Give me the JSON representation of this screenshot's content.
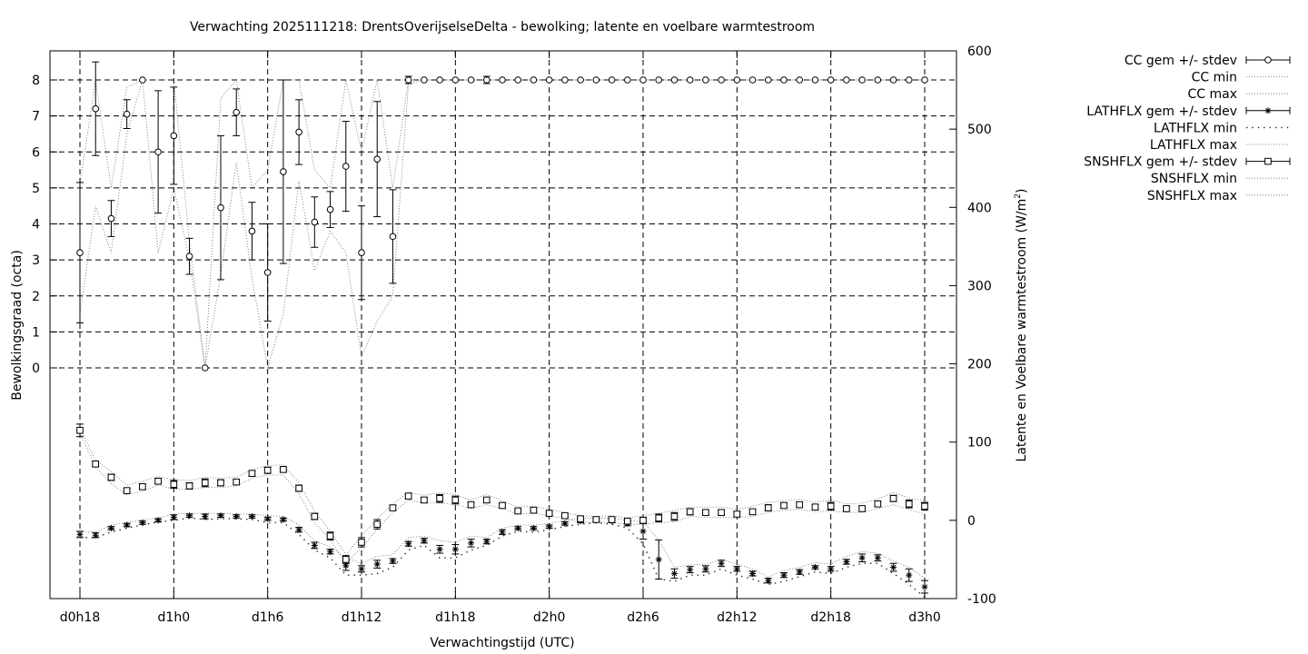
{
  "chart_data": {
    "type": "line",
    "title": "Verwachting 2025111218: DrentsOverijselseDelta - bewolking; latente en voelbare warmtestroom",
    "xlabel": "Verwachtingstijd (UTC)",
    "ylabel_left": "Bewolkingsgraad (octa)",
    "ylabel_right": "Latente en Voelbare warmtestroom (W/m",
    "ylabel_right_sup": "2",
    "ylabel_right_end": ")",
    "x_unit": "forecast hour (+h from d0h18)",
    "xlim": [
      18,
      72
    ],
    "ylim_left": [
      -6.4,
      8.8
    ],
    "ylim_right": [
      -100,
      600
    ],
    "grid": true,
    "legend_position": "top-right outside",
    "x_ticks": [
      {
        "x": 18,
        "label": "d0h18"
      },
      {
        "x": 24,
        "label": "d1h0"
      },
      {
        "x": 30,
        "label": "d1h6"
      },
      {
        "x": 36,
        "label": "d1h12"
      },
      {
        "x": 42,
        "label": "d1h18"
      },
      {
        "x": 48,
        "label": "d2h0"
      },
      {
        "x": 54,
        "label": "d2h6"
      },
      {
        "x": 60,
        "label": "d2h12"
      },
      {
        "x": 66,
        "label": "d2h18"
      },
      {
        "x": 72,
        "label": "d3h0"
      }
    ],
    "y_left_ticks": [
      0,
      1,
      2,
      3,
      4,
      5,
      6,
      7,
      8
    ],
    "y_right_ticks": [
      -100,
      0,
      100,
      200,
      300,
      400,
      500,
      600
    ],
    "legend": [
      {
        "key": "cc_mean",
        "label": "CC gem +/- stdev"
      },
      {
        "key": "cc_min",
        "label": "CC min"
      },
      {
        "key": "cc_max",
        "label": "CC max"
      },
      {
        "key": "lath_mean",
        "label": "LATHFLX gem +/- stdev"
      },
      {
        "key": "lath_min",
        "label": "LATHFLX min"
      },
      {
        "key": "lath_max",
        "label": "LATHFLX max"
      },
      {
        "key": "snsh_mean",
        "label": "SNSHFLX gem +/- stdev"
      },
      {
        "key": "snsh_min",
        "label": "SNSHFLX min"
      },
      {
        "key": "snsh_max",
        "label": "SNSHFLX max"
      }
    ],
    "series": [
      {
        "key": "cc",
        "axis": "left",
        "marker": "circle",
        "x": [
          18,
          19,
          20,
          21,
          22,
          23,
          24,
          25,
          26,
          27,
          28,
          29,
          30,
          31,
          32,
          33,
          34,
          35,
          36,
          37,
          38,
          39,
          40,
          41,
          42,
          43,
          44,
          45,
          46,
          47,
          48,
          49,
          50,
          51,
          52,
          53,
          54,
          55,
          56,
          57,
          58,
          59,
          60,
          61,
          62,
          63,
          64,
          65,
          66,
          67,
          68,
          69,
          70,
          71,
          72
        ],
        "mean": [
          3.2,
          7.2,
          4.15,
          7.05,
          8.0,
          6.0,
          6.45,
          3.1,
          0.0,
          4.45,
          7.1,
          3.8,
          2.65,
          5.45,
          6.55,
          4.05,
          4.4,
          5.6,
          3.2,
          5.8,
          3.65,
          8.0,
          8.0,
          8.0,
          8.0,
          8.0,
          8.0,
          8.0,
          8.0,
          8.0,
          8.0,
          8.0,
          8.0,
          8.0,
          8.0,
          8.0,
          8.0,
          8.0,
          8.0,
          8.0,
          8.0,
          8.0,
          8.0,
          8.0,
          8.0,
          8.0,
          8.0,
          8.0,
          8.0,
          8.0,
          8.0,
          8.0,
          8.0,
          8.0,
          8.0
        ],
        "stdev": [
          1.95,
          1.3,
          0.5,
          0.4,
          0.0,
          1.7,
          1.35,
          0.5,
          0.0,
          2.0,
          0.65,
          0.8,
          1.35,
          2.55,
          0.9,
          0.7,
          0.5,
          1.25,
          1.3,
          1.6,
          1.3,
          0.1,
          0.0,
          0.0,
          0.0,
          0.0,
          0.1,
          0.0,
          0.0,
          0.0,
          0.0,
          0.0,
          0.0,
          0.0,
          0.0,
          0.0,
          0.0,
          0.0,
          0.0,
          0.0,
          0.0,
          0.0,
          0.0,
          0.0,
          0.0,
          0.0,
          0.0,
          0.0,
          0.0,
          0.0,
          0.0,
          0.0,
          0.0,
          0.0,
          0.0
        ],
        "min": [
          1.5,
          4.5,
          3.2,
          6.5,
          8.0,
          3.2,
          5.0,
          3.0,
          0.0,
          2.6,
          5.7,
          2.5,
          0.0,
          1.5,
          5.2,
          2.7,
          3.8,
          3.2,
          0.3,
          1.3,
          2.0,
          7.9,
          8.0,
          8.0,
          8.0,
          8.0,
          8.0,
          8.0,
          8.0,
          8.0,
          8.0,
          8.0,
          8.0,
          8.0,
          8.0,
          8.0,
          8.0,
          8.0,
          8.0,
          8.0,
          8.0,
          8.0,
          8.0,
          8.0,
          8.0,
          8.0,
          8.0,
          8.0,
          8.0,
          8.0,
          8.0,
          8.0,
          8.0,
          8.0,
          8.0
        ],
        "max": [
          5.1,
          8.0,
          5.0,
          7.8,
          8.0,
          8.0,
          8.0,
          3.5,
          0.0,
          7.5,
          8.0,
          5.0,
          5.5,
          8.0,
          8.0,
          5.5,
          5.0,
          8.0,
          6.0,
          8.0,
          5.0,
          8.0,
          8.0,
          8.0,
          8.0,
          8.0,
          8.0,
          8.0,
          8.0,
          8.0,
          8.0,
          8.0,
          8.0,
          8.0,
          8.0,
          8.0,
          8.0,
          8.0,
          8.0,
          8.0,
          8.0,
          8.0,
          8.0,
          8.0,
          8.0,
          8.0,
          8.0,
          8.0,
          8.0,
          8.0,
          8.0,
          8.0,
          8.0,
          8.0,
          8.0
        ]
      },
      {
        "key": "lath",
        "axis": "right",
        "marker": "star",
        "x": [
          18,
          19,
          20,
          21,
          22,
          23,
          24,
          25,
          26,
          27,
          28,
          29,
          30,
          31,
          32,
          33,
          34,
          35,
          36,
          37,
          38,
          39,
          40,
          41,
          42,
          43,
          44,
          45,
          46,
          47,
          48,
          49,
          50,
          51,
          52,
          53,
          54,
          55,
          56,
          57,
          58,
          59,
          60,
          61,
          62,
          63,
          64,
          65,
          66,
          67,
          68,
          69,
          70,
          71,
          72
        ],
        "mean": [
          -18,
          -19,
          -10,
          -6,
          -3,
          0,
          4,
          6,
          5,
          6,
          5,
          5,
          2,
          1,
          -12,
          -32,
          -40,
          -58,
          -62,
          -56,
          -52,
          -30,
          -26,
          -37,
          -37,
          -29,
          -27,
          -15,
          -10,
          -10,
          -8,
          -4,
          -1,
          0,
          -1,
          -4,
          -14,
          -50,
          -68,
          -63,
          -62,
          -55,
          -62,
          -68,
          -77,
          -70,
          -66,
          -60,
          -62,
          -53,
          -48,
          -48,
          -60,
          -70,
          -85
        ],
        "stdev": [
          4,
          3,
          2,
          2,
          2,
          2,
          3,
          2,
          3,
          2,
          2,
          2,
          2,
          2,
          3,
          4,
          3,
          6,
          4,
          5,
          3,
          3,
          3,
          5,
          6,
          5,
          3,
          3,
          2,
          2,
          2,
          2,
          2,
          2,
          2,
          3,
          10,
          25,
          6,
          4,
          4,
          4,
          3,
          3,
          3,
          3,
          3,
          2,
          3,
          3,
          5,
          4,
          5,
          8,
          8
        ],
        "min": [
          -22,
          -22,
          -15,
          -10,
          -6,
          -2,
          0,
          3,
          1,
          2,
          2,
          1,
          -3,
          -3,
          -18,
          -38,
          -48,
          -70,
          -70,
          -68,
          -60,
          -38,
          -32,
          -48,
          -48,
          -38,
          -32,
          -20,
          -14,
          -15,
          -12,
          -8,
          -5,
          -3,
          -5,
          -10,
          -30,
          -75,
          -78,
          -70,
          -70,
          -62,
          -70,
          -75,
          -82,
          -78,
          -72,
          -66,
          -68,
          -60,
          -55,
          -55,
          -68,
          -82,
          -98
        ],
        "max": [
          -14,
          -15,
          -6,
          -3,
          1,
          3,
          8,
          9,
          9,
          9,
          8,
          8,
          6,
          5,
          -6,
          -26,
          -34,
          -48,
          -55,
          -46,
          -44,
          -22,
          -20,
          -26,
          -28,
          -20,
          -22,
          -10,
          -6,
          -6,
          -4,
          0,
          3,
          3,
          3,
          0,
          -2,
          -25,
          -60,
          -57,
          -56,
          -50,
          -56,
          -62,
          -72,
          -64,
          -60,
          -54,
          -56,
          -46,
          -40,
          -42,
          -52,
          -60,
          -74
        ]
      },
      {
        "key": "snsh",
        "axis": "right",
        "marker": "square",
        "x": [
          18,
          19,
          20,
          21,
          22,
          23,
          24,
          25,
          26,
          27,
          28,
          29,
          30,
          31,
          32,
          33,
          34,
          35,
          36,
          37,
          38,
          39,
          40,
          41,
          42,
          43,
          44,
          45,
          46,
          47,
          48,
          49,
          50,
          51,
          52,
          53,
          54,
          55,
          56,
          57,
          58,
          59,
          60,
          61,
          62,
          63,
          64,
          65,
          66,
          67,
          68,
          69,
          70,
          71,
          72
        ],
        "mean": [
          115,
          72,
          55,
          38,
          43,
          50,
          46,
          44,
          48,
          48,
          49,
          60,
          64,
          65,
          41,
          5,
          -20,
          -50,
          -28,
          -5,
          16,
          31,
          26,
          28,
          26,
          20,
          26,
          19,
          12,
          13,
          9,
          6,
          2,
          1,
          1,
          -1,
          0,
          3,
          5,
          11,
          10,
          10,
          8,
          11,
          16,
          19,
          20,
          17,
          18,
          15,
          15,
          21,
          28,
          21,
          18
        ],
        "stdev": [
          8,
          3,
          4,
          3,
          3,
          3,
          5,
          4,
          5,
          4,
          3,
          3,
          4,
          3,
          4,
          4,
          5,
          5,
          6,
          6,
          3,
          3,
          3,
          5,
          5,
          3,
          3,
          3,
          2,
          2,
          2,
          2,
          2,
          2,
          2,
          3,
          4,
          5,
          5,
          4,
          3,
          3,
          3,
          3,
          4,
          3,
          3,
          3,
          5,
          3,
          3,
          3,
          4,
          5,
          5
        ],
        "min": [
          112,
          68,
          47,
          33,
          37,
          45,
          40,
          40,
          42,
          42,
          44,
          54,
          58,
          58,
          34,
          -3,
          -25,
          -55,
          -35,
          -12,
          10,
          26,
          22,
          22,
          20,
          15,
          20,
          15,
          8,
          9,
          6,
          2,
          -2,
          -3,
          -3,
          -5,
          -5,
          -3,
          -2,
          5,
          4,
          4,
          3,
          5,
          10,
          13,
          14,
          11,
          12,
          10,
          10,
          15,
          20,
          14,
          8
        ],
        "max": [
          118,
          77,
          62,
          45,
          50,
          56,
          52,
          51,
          55,
          54,
          55,
          65,
          70,
          71,
          48,
          12,
          -14,
          -44,
          -20,
          2,
          21,
          36,
          32,
          35,
          33,
          26,
          33,
          25,
          17,
          18,
          14,
          10,
          6,
          5,
          6,
          3,
          6,
          9,
          13,
          17,
          17,
          17,
          14,
          18,
          23,
          25,
          27,
          23,
          26,
          21,
          22,
          27,
          36,
          28,
          26
        ]
      }
    ]
  }
}
